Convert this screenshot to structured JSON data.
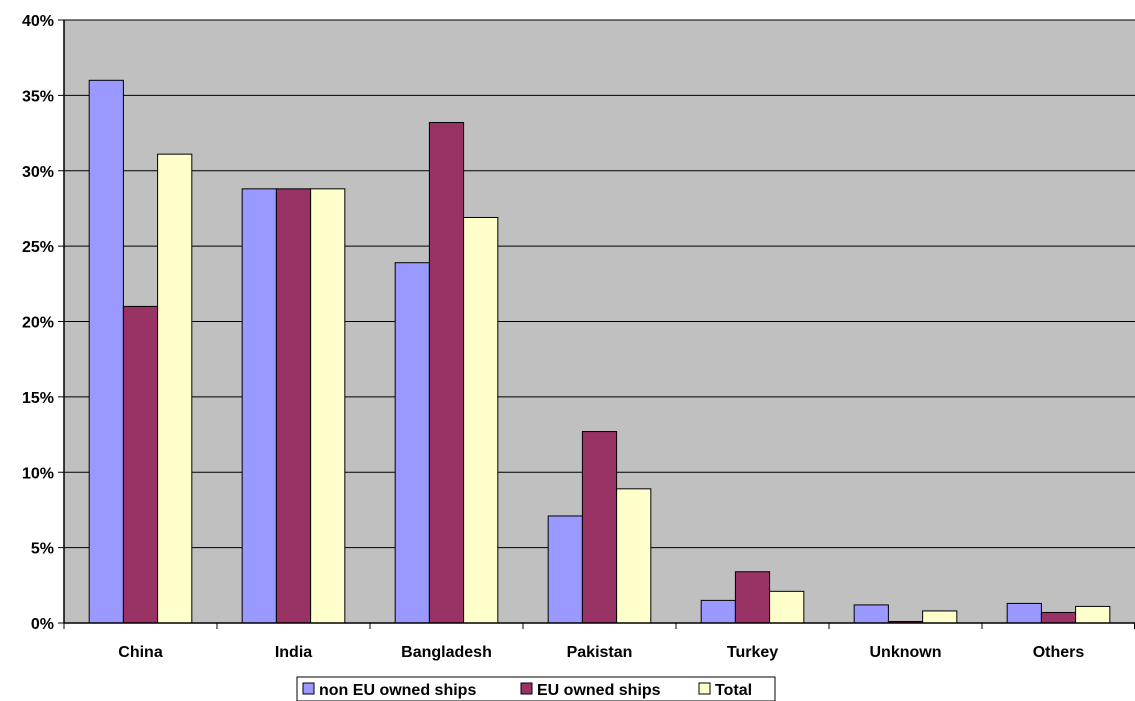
{
  "chart_data": {
    "type": "bar",
    "categories": [
      "China",
      "India",
      "Bangladesh",
      "Pakistan",
      "Turkey",
      "Unknown",
      "Others"
    ],
    "series": [
      {
        "name": "non EU owned ships",
        "color": "#9999ff",
        "values": [
          36.0,
          28.8,
          23.9,
          7.1,
          1.5,
          1.2,
          1.3
        ]
      },
      {
        "name": "EU owned ships",
        "color": "#993366",
        "values": [
          21.0,
          28.8,
          33.2,
          12.7,
          3.4,
          0.1,
          0.7
        ]
      },
      {
        "name": "Total",
        "color": "#ffffcc",
        "values": [
          31.1,
          28.8,
          26.9,
          8.9,
          2.1,
          0.8,
          1.1
        ]
      }
    ],
    "ylim": [
      0,
      40
    ],
    "yticks": [
      "0%",
      "5%",
      "10%",
      "15%",
      "20%",
      "25%",
      "30%",
      "35%",
      "40%"
    ],
    "ytick_values": [
      0,
      5,
      10,
      15,
      20,
      25,
      30,
      35,
      40
    ],
    "grid": true,
    "legend_position": "bottom",
    "plot_background": "#c0c0c0",
    "xlabel": "",
    "ylabel": "",
    "title": ""
  }
}
